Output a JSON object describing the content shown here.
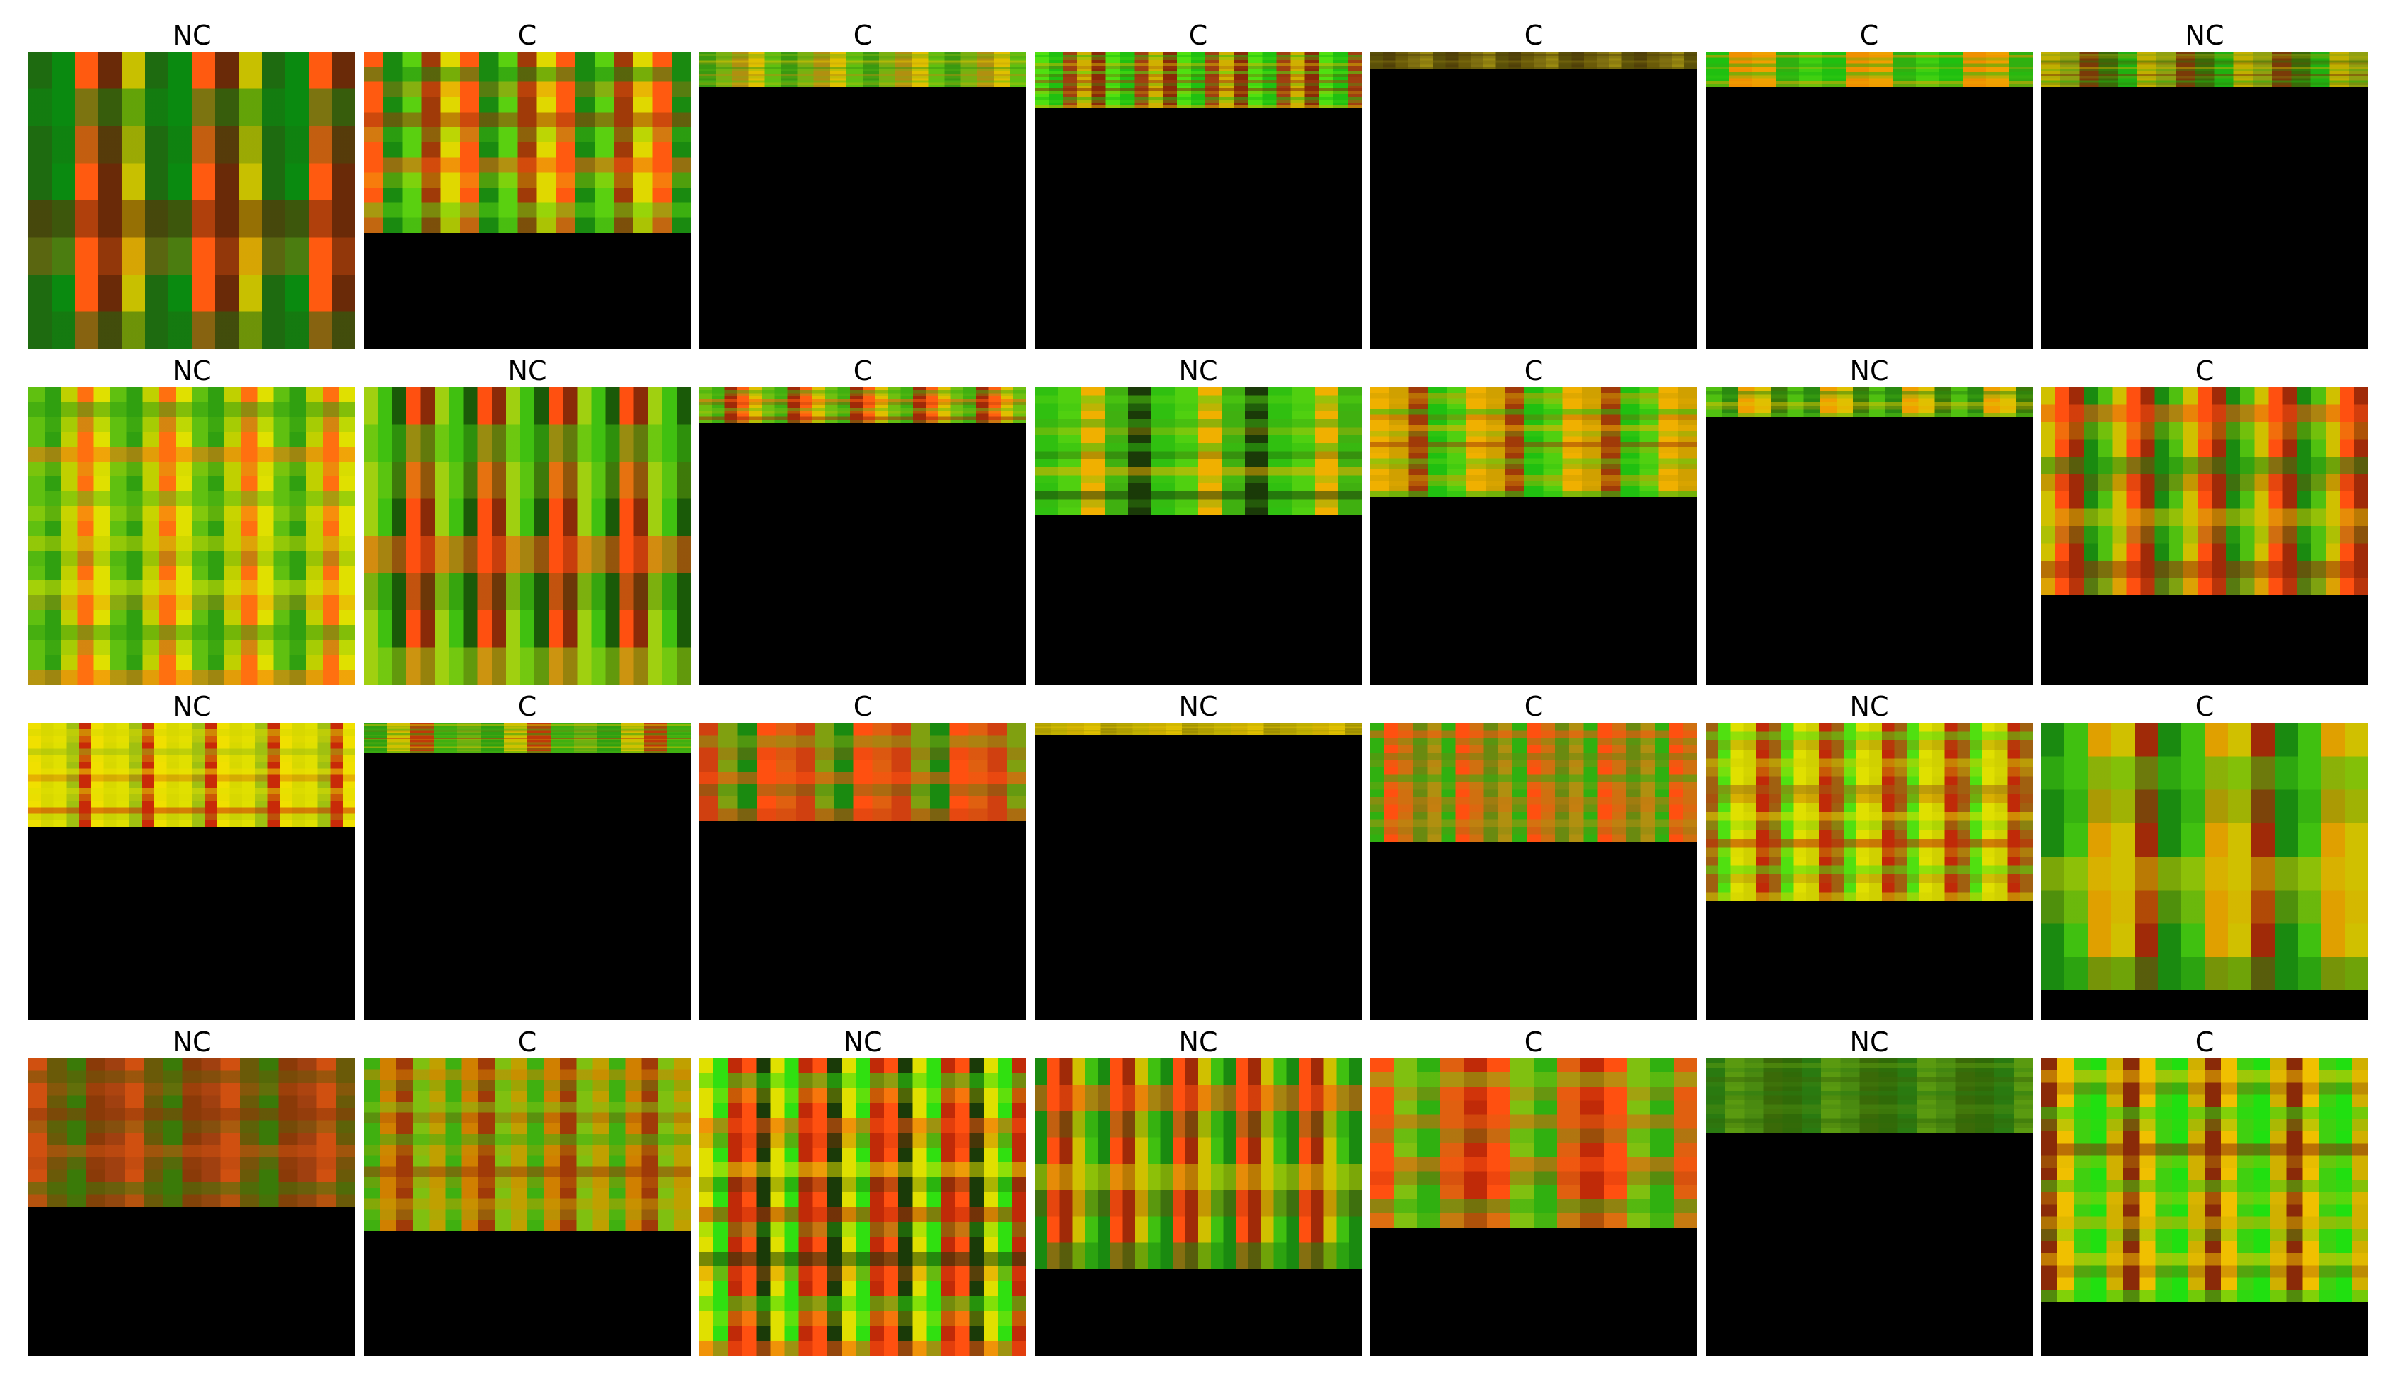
{
  "grid": {
    "rows": 4,
    "cols": 7,
    "tiles": [
      {
        "label": "NC",
        "fill": 1.0,
        "palette": [
          "#1e6b10",
          "#ff5a10",
          "#c8c000",
          "#0a8a10",
          "#6a2a08"
        ]
      },
      {
        "label": "C",
        "fill": 0.61,
        "palette": [
          "#a03a08",
          "#ff5a10",
          "#5ad010",
          "#e0d800",
          "#1a8a10"
        ]
      },
      {
        "label": "C",
        "fill": 0.12,
        "palette": [
          "#7ab010",
          "#e0c000",
          "#3a9a10",
          "#b09010",
          "#60c010"
        ]
      },
      {
        "label": "C",
        "fill": 0.19,
        "palette": [
          "#8a2a08",
          "#20c010",
          "#d0b000",
          "#50e010",
          "#a04010"
        ]
      },
      {
        "label": "C",
        "fill": 0.06,
        "palette": [
          "#6a5a08",
          "#9a8a10",
          "#504008",
          "#807010",
          "#5a5008"
        ]
      },
      {
        "label": "C",
        "fill": 0.12,
        "palette": [
          "#20c010",
          "#f0a000",
          "#40d010",
          "#f09000",
          "#30b010"
        ]
      },
      {
        "label": "NC",
        "fill": 0.12,
        "palette": [
          "#3a6a08",
          "#c0b000",
          "#7a3a08",
          "#20b010",
          "#90a010"
        ]
      },
      {
        "label": "NC",
        "fill": 1.0,
        "palette": [
          "#30a010",
          "#ff7010",
          "#60c010",
          "#c0d000",
          "#e0e000"
        ]
      },
      {
        "label": "NC",
        "fill": 1.0,
        "palette": [
          "#8a2a08",
          "#40c010",
          "#ff5010",
          "#a0d010",
          "#1a5a08"
        ]
      },
      {
        "label": "C",
        "fill": 0.12,
        "palette": [
          "#a02a08",
          "#e0c000",
          "#40b010",
          "#ff6010",
          "#70c010"
        ]
      },
      {
        "label": "NC",
        "fill": 0.43,
        "palette": [
          "#30c010",
          "#f0b000",
          "#1a3a08",
          "#50d010",
          "#40b010"
        ]
      },
      {
        "label": "C",
        "fill": 0.37,
        "palette": [
          "#20c010",
          "#f0b000",
          "#a03a08",
          "#50d010",
          "#d0a000"
        ]
      },
      {
        "label": "NC",
        "fill": 0.1,
        "palette": [
          "#2a8a10",
          "#e0c000",
          "#50c010",
          "#f0a000",
          "#3a7a08"
        ]
      },
      {
        "label": "C",
        "fill": 0.7,
        "palette": [
          "#50c010",
          "#ff5010",
          "#1a8a10",
          "#d0c000",
          "#a02a08"
        ]
      },
      {
        "label": "NC",
        "fill": 0.35,
        "palette": [
          "#e0e000",
          "#c82a08",
          "#d8d800",
          "#a0c010",
          "#f0e000"
        ]
      },
      {
        "label": "C",
        "fill": 0.1,
        "palette": [
          "#30a010",
          "#c03a08",
          "#70b010",
          "#d0c000",
          "#40b010"
        ]
      },
      {
        "label": "C",
        "fill": 0.33,
        "palette": [
          "#ff5010",
          "#d04010",
          "#1a8a10",
          "#e06010",
          "#80a010"
        ]
      },
      {
        "label": "NC",
        "fill": 0.04,
        "palette": [
          "#c0b000",
          "#e0c000",
          "#b0a000",
          "#d0b000",
          "#a09000"
        ]
      },
      {
        "label": "C",
        "fill": 0.4,
        "palette": [
          "#b09010",
          "#ff5010",
          "#6a8a10",
          "#30b010",
          "#d07010"
        ]
      },
      {
        "label": "NC",
        "fill": 0.6,
        "palette": [
          "#e0e000",
          "#c02a08",
          "#50e010",
          "#d0d000",
          "#a06010"
        ]
      },
      {
        "label": "C",
        "fill": 0.9,
        "palette": [
          "#1a8a10",
          "#e0a000",
          "#a02a08",
          "#40c010",
          "#d0c000"
        ]
      },
      {
        "label": "NC",
        "fill": 0.5,
        "palette": [
          "#8a3a08",
          "#d05010",
          "#3a7a08",
          "#a04010",
          "#6a5a08"
        ]
      },
      {
        "label": "C",
        "fill": 0.58,
        "palette": [
          "#d08000",
          "#80c010",
          "#40b010",
          "#a03a08",
          "#c0a000"
        ]
      },
      {
        "label": "NC",
        "fill": 1.0,
        "palette": [
          "#1a3a08",
          "#30e010",
          "#ff5010",
          "#e0e000",
          "#c02a08"
        ]
      },
      {
        "label": "NC",
        "fill": 0.71,
        "palette": [
          "#a02a08",
          "#40c010",
          "#ff5010",
          "#d0c000",
          "#1a8a10"
        ]
      },
      {
        "label": "C",
        "fill": 0.57,
        "palette": [
          "#ff5010",
          "#30b010",
          "#c02a08",
          "#80c010",
          "#e06010"
        ]
      },
      {
        "label": "NC",
        "fill": 0.25,
        "palette": [
          "#3a6a08",
          "#2a7a10",
          "#4a8a10",
          "#306a08",
          "#5a9a10"
        ]
      },
      {
        "label": "C",
        "fill": 0.82,
        "palette": [
          "#f0c000",
          "#20e010",
          "#8a2a08",
          "#40d010",
          "#d0b000"
        ]
      }
    ]
  }
}
